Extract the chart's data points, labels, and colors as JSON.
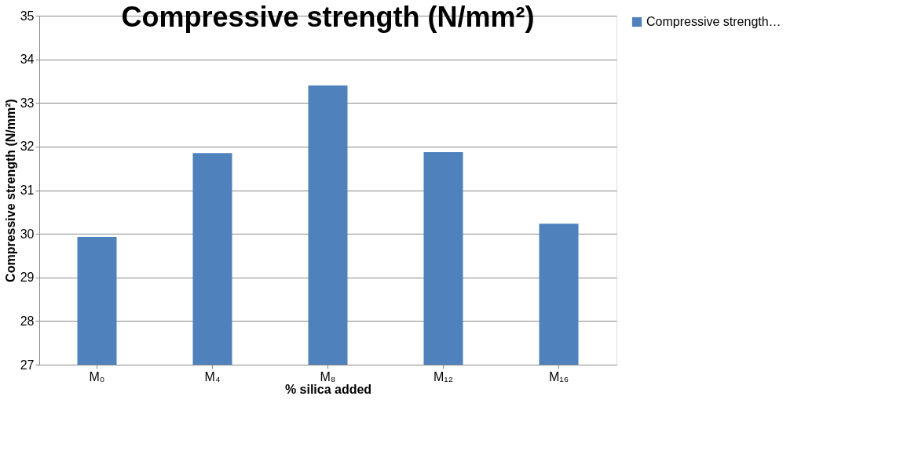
{
  "chart_data": {
    "type": "bar",
    "title": "Compressive strength (N/mm²)",
    "xlabel": "% silica added",
    "ylabel": "Compressive strength (N/mm²)",
    "categories": [
      "M₀",
      "M₄",
      "M₈",
      "M₁₂",
      "M₁₆"
    ],
    "series": [
      {
        "name": "Compressive strength…",
        "color": "#4f81bd",
        "values": [
          29.93,
          31.85,
          33.4,
          31.87,
          30.23
        ]
      }
    ],
    "ylim": [
      27,
      35
    ],
    "yticks": [
      27,
      28,
      29,
      30,
      31,
      32,
      33,
      34,
      35
    ],
    "grid": "y",
    "legend": "right"
  }
}
